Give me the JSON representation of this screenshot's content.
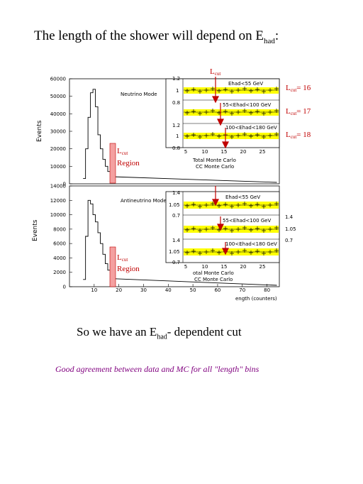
{
  "title": {
    "pre": "The length of the shower will depend on E",
    "sub": "had",
    "post": ":"
  },
  "bottom": {
    "line1_pre": "So we have an E",
    "line1_sub": "had",
    "line1_post": "- dependent cut",
    "line2": "Good agreement between data and MC for all \"length\" bins"
  },
  "chart_data": [
    {
      "type": "line",
      "title": "Neutrino Mode",
      "ylabel": "Events",
      "yticks": [
        "0",
        "10000",
        "20000",
        "30000",
        "40000",
        "50000",
        "60000"
      ],
      "ylim": [
        0,
        60000
      ],
      "series": [
        {
          "x": [
            6,
            7,
            8,
            9,
            10,
            11,
            12,
            13,
            14,
            15,
            16,
            17,
            18
          ],
          "values": [
            3000,
            20000,
            38000,
            52000,
            54000,
            44000,
            28000,
            20000,
            14000,
            10000,
            7000,
            5000,
            4000
          ]
        }
      ],
      "annotation": {
        "line1": "L",
        "line1_sub": "cut",
        "line2": "Region"
      }
    },
    {
      "type": "line",
      "title": "Antineutrino Mode",
      "ylabel": "Events",
      "xlabel": "ength (counters)",
      "xticks": [
        "10",
        "20",
        "30",
        "40",
        "50",
        "60",
        "70",
        "80"
      ],
      "yticks": [
        "0",
        "2000",
        "4000",
        "6000",
        "8000",
        "10000",
        "12000",
        "14000"
      ],
      "ylim": [
        0,
        14000
      ],
      "series": [
        {
          "x": [
            6,
            7,
            8,
            9,
            10,
            11,
            12,
            13,
            14,
            15,
            16,
            17,
            18
          ],
          "values": [
            1000,
            7000,
            12000,
            11500,
            10000,
            9000,
            7500,
            6000,
            4500,
            3200,
            2300,
            1600,
            1100
          ]
        }
      ],
      "annotation": {
        "line1": "L",
        "line1_sub": "cut",
        "line2": "Region"
      }
    },
    {
      "type": "scatter",
      "title": "Neutrino ratio insets",
      "panels": [
        {
          "label": "Ehad<55 GeV",
          "yticks": [
            "0.8",
            "1",
            "1.2"
          ],
          "lcut": 16
        },
        {
          "label": "55<Ehad<100 GeV",
          "yticks": [],
          "lcut": 17
        },
        {
          "label": "100<Ehad<180 GeV",
          "yticks": [
            "0.8",
            "1",
            "1.2"
          ],
          "lcut": 18
        }
      ],
      "xticks": [
        "5",
        "10",
        "15",
        "20",
        "25"
      ],
      "xlabel": "Total Monte Carlo",
      "xlabel2": "CC Monte Carlo"
    },
    {
      "type": "scatter",
      "title": "Antineutrino ratio insets",
      "panels": [
        {
          "label": "Ehad<55 GeV",
          "yticks": [
            "1.4",
            "1.05",
            "0.7"
          ]
        },
        {
          "label": "55<Ehad<100 GeV",
          "yticks": []
        },
        {
          "label": "100<Ehad<180 GeV",
          "yticks": [
            "1.4",
            "1.05",
            "0.7"
          ]
        }
      ],
      "right_ticks": [
        "1.4",
        "1.05",
        "0.7"
      ],
      "xticks": [
        "5",
        "10",
        "15",
        "20",
        "25"
      ],
      "xlabel": "otal Monte Carlo",
      "xlabel2": "CC Monte Carlo"
    }
  ],
  "labels": {
    "lcut_top": "L",
    "lcut_top_sub": "cut",
    "lcut16": {
      "pre": "L",
      "sub": "cut",
      "post": "= 16"
    },
    "lcut17": {
      "pre": "L",
      "sub": "cut",
      "post": "= 17"
    },
    "lcut18": {
      "pre": "L",
      "sub": "cut",
      "post": "= 18"
    }
  },
  "colors": {
    "red": "#c00000",
    "band": "#ffff00",
    "region": "#f4a0a0",
    "purple": "#80007f"
  }
}
